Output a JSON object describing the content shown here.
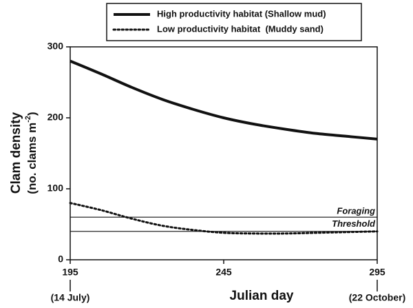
{
  "chart_data": {
    "type": "line",
    "xlabel": "Julian day",
    "ylabel": "Clam density",
    "ylabel_units": {
      "text": "(no. clams m",
      "sup": "-2",
      "close": ")"
    },
    "x": [
      195,
      205,
      215,
      225,
      235,
      245,
      255,
      265,
      275,
      285,
      295
    ],
    "series": [
      {
        "name": "High productivity habitat (Shallow mud)",
        "color": "#111111",
        "dash": "solid",
        "values": [
          280,
          262,
          243,
          226,
          212,
          200,
          191,
          184,
          178,
          174,
          170
        ]
      },
      {
        "name": "Low productivity habitat  (Muddy sand)",
        "color": "#111111",
        "dash": "dotted",
        "values": [
          80,
          70,
          58,
          48,
          42,
          38,
          37,
          37,
          38,
          39,
          40
        ]
      }
    ],
    "threshold_lines": [
      60,
      40
    ],
    "annotation": [
      "Foraging",
      "Threshold"
    ],
    "xlim": [
      195,
      295
    ],
    "xticks": [
      195,
      245,
      295
    ],
    "xtick_notes": [
      {
        "x": 195,
        "label": "(14 July)"
      },
      {
        "x": 295,
        "label": "(22 October)"
      }
    ],
    "ylim": [
      0,
      300
    ],
    "yticks": [
      0,
      100,
      200,
      300
    ],
    "legend": "top"
  }
}
